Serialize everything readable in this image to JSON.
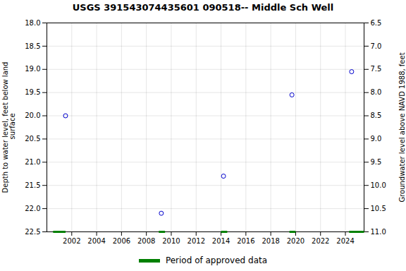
{
  "chart_data": {
    "type": "scatter",
    "title": "USGS 391543074435601 090518-- Middle Sch Well",
    "ylabel": "Depth to water level, feet below land\n surface",
    "y2label": "Groundwater level above NAVD 1988, feet",
    "xlim": [
      2000.0,
      2025.5
    ],
    "ylim": [
      22.5,
      18.0
    ],
    "y2lim": [
      11.0,
      6.5
    ],
    "xticks": [
      2002,
      2004,
      2006,
      2008,
      2010,
      2012,
      2014,
      2016,
      2018,
      2020,
      2022,
      2024
    ],
    "yticks": [
      {
        "value": 18.0,
        "label": "18.0"
      },
      18.5,
      {
        "value": 19.0,
        "label": "19.0"
      },
      19.5,
      {
        "value": 20.0,
        "label": "20.0"
      },
      20.5,
      {
        "value": 21.0,
        "label": "21.0"
      },
      21.5,
      {
        "value": 22.0,
        "label": "22.0"
      },
      22.5
    ],
    "y2ticks": [
      {
        "value": 11.0,
        "label": "11.0"
      },
      10.5,
      {
        "value": 10.0,
        "label": "10.0"
      },
      9.5,
      {
        "value": 9.0,
        "label": "9.0"
      },
      8.5,
      {
        "value": 8.0,
        "label": "8.0"
      },
      7.5,
      {
        "value": 7.0,
        "label": "7.0"
      },
      6.5
    ],
    "grid": true,
    "legend": "bottom",
    "series": [
      {
        "type": "scatter",
        "color": "#0000cc",
        "marker": "open circle",
        "x": [
          2001.5,
          2009.2,
          2014.2,
          2019.7,
          2024.5
        ],
        "values": [
          20.0,
          22.1,
          21.3,
          19.55,
          19.05
        ]
      },
      {
        "type": "segment",
        "name": "Period of approved data",
        "color": "#008000",
        "y": 22.5,
        "segments": [
          [
            2000.5,
            2001.5
          ],
          [
            2009.0,
            2009.5
          ],
          [
            2014.0,
            2014.5
          ],
          [
            2019.5,
            2020.0
          ],
          [
            2024.3,
            2025.5
          ]
        ]
      }
    ]
  }
}
